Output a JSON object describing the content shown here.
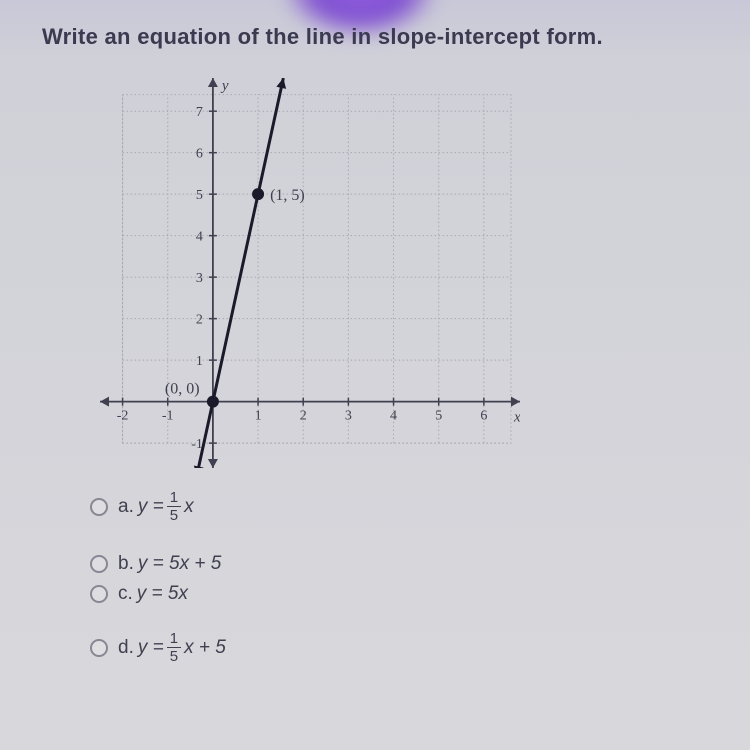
{
  "question": {
    "title": "Write an equation of the line in slope-intercept form."
  },
  "chart": {
    "type": "line",
    "xlim": [
      -2.5,
      6.8
    ],
    "ylim": [
      -1.6,
      7.8
    ],
    "xticks": [
      -2,
      -1,
      1,
      2,
      3,
      4,
      5,
      6
    ],
    "yticks": [
      -1,
      1,
      2,
      3,
      4,
      5,
      6,
      7
    ],
    "xlabel": "x",
    "ylabel": "y",
    "grid_color": "#a8a8b0",
    "axis_color": "#404050",
    "background_color": "rgba(232,232,236,0.4)",
    "line_color": "#1a1a2a",
    "line_width": 3,
    "line_points": [
      [
        -0.36,
        -1.8
      ],
      [
        1.56,
        7.8
      ]
    ],
    "marked_points": [
      {
        "x": 0,
        "y": 0,
        "label": "(0, 0)",
        "label_pos": "left"
      },
      {
        "x": 1,
        "y": 5,
        "label": "(1, 5)",
        "label_pos": "right"
      }
    ],
    "point_marker_size": 6,
    "tick_fontsize": 14,
    "label_fontsize": 15,
    "point_label_fontsize": 16
  },
  "choices": {
    "a": {
      "label": "a.",
      "prefix": "y = ",
      "fraction_num": "1",
      "fraction_den": "5",
      "suffix": "x"
    },
    "b": {
      "label": "b.",
      "text": "y = 5x + 5"
    },
    "c": {
      "label": "c.",
      "text": "y = 5x"
    },
    "d": {
      "label": "d.",
      "prefix": "y = ",
      "fraction_num": "1",
      "fraction_den": "5",
      "suffix": "x + 5"
    }
  }
}
